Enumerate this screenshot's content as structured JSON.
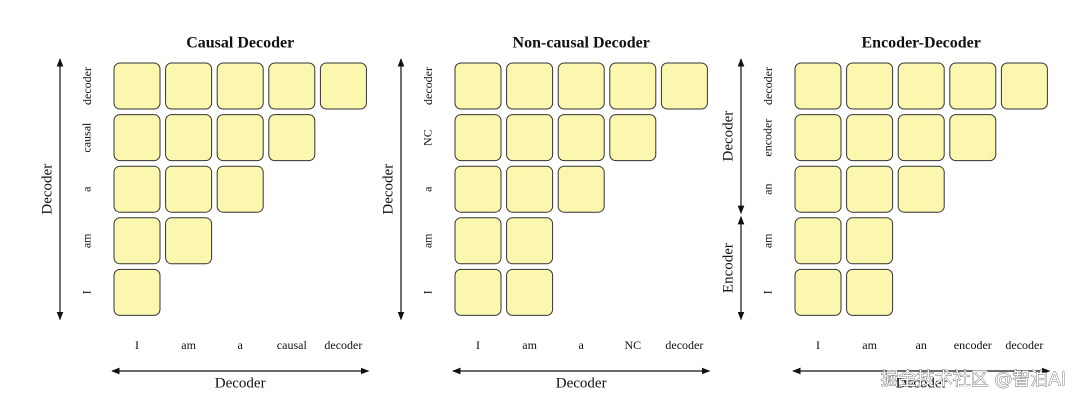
{
  "panels": [
    {
      "title": "Causal Decoder",
      "row_labels": [
        "decoder",
        "causal",
        "a",
        "am",
        "I"
      ],
      "column_labels": [
        "I",
        "am",
        "a",
        "causal",
        "decoder"
      ],
      "left_axis": [
        "Decoder"
      ],
      "bottom_axis": "Decoder"
    },
    {
      "title": "Non-causal Decoder",
      "row_labels": [
        "decoder",
        "NC",
        "a",
        "am",
        "I"
      ],
      "column_labels": [
        "I",
        "am",
        "a",
        "NC",
        "decoder"
      ],
      "left_axis": [
        "Decoder"
      ],
      "bottom_axis": "Decoder"
    },
    {
      "title": "Encoder-Decoder",
      "row_labels": [
        "decoder",
        "encoder",
        "an",
        "am",
        "I"
      ],
      "column_labels": [
        "I",
        "am",
        "an",
        "encoder",
        "decoder"
      ],
      "left_axis": [
        "Decoder",
        "Encoder"
      ],
      "bottom_axis": "Decoder"
    }
  ],
  "watermark": "掘金技术社区 @智泊AI"
}
